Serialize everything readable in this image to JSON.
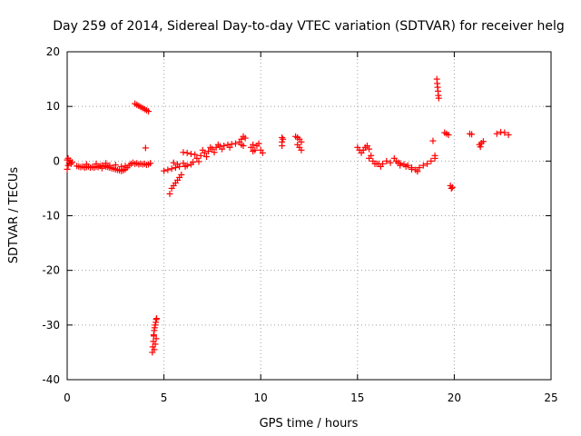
{
  "chart_data": {
    "type": "scatter",
    "title": "Day 259 of 2014, Sidereal Day-to-day VTEC variation (SDTVAR) for receiver helg",
    "xlabel": "GPS time / hours",
    "ylabel": "SDTVAR / TECUs",
    "xlim": [
      0,
      25
    ],
    "ylim": [
      -40,
      20
    ],
    "xticks": [
      0,
      5,
      10,
      15,
      20,
      25
    ],
    "yticks": [
      -40,
      -30,
      -20,
      -10,
      0,
      10,
      20
    ],
    "grid": true,
    "marker": "+",
    "color": "#ff0000",
    "series": [
      {
        "name": "SDTVAR",
        "points": [
          [
            0.0,
            0.2
          ],
          [
            0.0,
            -1.5
          ],
          [
            0.05,
            0.5
          ],
          [
            0.05,
            -0.8
          ],
          [
            0.1,
            -0.3
          ],
          [
            0.15,
            0.1
          ],
          [
            0.2,
            -0.5
          ],
          [
            0.25,
            -0.2
          ],
          [
            0.5,
            -0.9
          ],
          [
            0.6,
            -1.0
          ],
          [
            0.7,
            -1.1
          ],
          [
            0.8,
            -1.0
          ],
          [
            0.9,
            -1.2
          ],
          [
            1.0,
            -1.1
          ],
          [
            1.1,
            -1.0
          ],
          [
            1.2,
            -1.2
          ],
          [
            1.3,
            -1.1
          ],
          [
            1.4,
            -1.2
          ],
          [
            1.5,
            -1.0
          ],
          [
            1.6,
            -1.1
          ],
          [
            1.7,
            -0.9
          ],
          [
            1.8,
            -0.8
          ],
          [
            1.9,
            -0.9
          ],
          [
            2.0,
            -1.0
          ],
          [
            2.1,
            -1.1
          ],
          [
            2.2,
            -1.2
          ],
          [
            2.3,
            -1.3
          ],
          [
            2.4,
            -1.4
          ],
          [
            2.5,
            -1.5
          ],
          [
            2.6,
            -1.6
          ],
          [
            2.7,
            -1.7
          ],
          [
            2.8,
            -1.8
          ],
          [
            2.9,
            -1.7
          ],
          [
            3.0,
            -1.5
          ],
          [
            3.1,
            -1.2
          ],
          [
            3.2,
            -0.8
          ],
          [
            3.3,
            -0.5
          ],
          [
            3.4,
            -0.3
          ],
          [
            3.5,
            -0.5
          ],
          [
            3.6,
            -0.4
          ],
          [
            3.7,
            -0.6
          ],
          [
            3.8,
            -0.5
          ],
          [
            3.9,
            -0.6
          ],
          [
            4.0,
            -0.5
          ],
          [
            4.1,
            -0.7
          ],
          [
            4.2,
            -0.6
          ],
          [
            4.3,
            -0.4
          ],
          [
            1.0,
            -0.6
          ],
          [
            1.5,
            -0.5
          ],
          [
            2.0,
            -0.4
          ],
          [
            2.5,
            -0.7
          ],
          [
            3.0,
            -0.9
          ],
          [
            2.2,
            -0.8
          ],
          [
            2.8,
            -1.0
          ],
          [
            1.8,
            -1.3
          ],
          [
            3.5,
            10.5
          ],
          [
            3.6,
            10.3
          ],
          [
            3.7,
            10.1
          ],
          [
            3.8,
            9.9
          ],
          [
            3.9,
            9.7
          ],
          [
            4.0,
            9.5
          ],
          [
            4.1,
            9.3
          ],
          [
            4.2,
            9.1
          ],
          [
            4.05,
            2.4
          ],
          [
            4.4,
            -35.0
          ],
          [
            4.42,
            -34.0
          ],
          [
            4.45,
            -33.0
          ],
          [
            4.48,
            -32.0
          ],
          [
            4.5,
            -31.0
          ],
          [
            4.52,
            -30.5
          ],
          [
            4.55,
            -30.0
          ],
          [
            4.58,
            -29.5
          ],
          [
            4.6,
            -29.0
          ],
          [
            4.62,
            -28.8
          ],
          [
            4.5,
            -34.5
          ],
          [
            4.55,
            -33.5
          ],
          [
            4.6,
            -32.5
          ],
          [
            4.47,
            -31.8
          ],
          [
            5.0,
            -1.8
          ],
          [
            5.2,
            -1.6
          ],
          [
            5.4,
            -1.4
          ],
          [
            5.6,
            -1.2
          ],
          [
            5.8,
            -1.0
          ],
          [
            5.3,
            -6.0
          ],
          [
            5.4,
            -5.0
          ],
          [
            5.5,
            -4.5
          ],
          [
            5.6,
            -4.0
          ],
          [
            5.7,
            -3.5
          ],
          [
            5.8,
            -3.0
          ],
          [
            5.9,
            -2.5
          ],
          [
            5.5,
            -0.3
          ],
          [
            5.7,
            -0.6
          ],
          [
            6.0,
            -0.4
          ],
          [
            6.2,
            -0.8
          ],
          [
            6.4,
            -0.6
          ],
          [
            6.1,
            -1.0
          ],
          [
            6.0,
            1.6
          ],
          [
            6.2,
            1.5
          ],
          [
            6.4,
            1.3
          ],
          [
            6.6,
            1.2
          ],
          [
            6.5,
            -0.2
          ],
          [
            6.7,
            0.5
          ],
          [
            6.9,
            1.0
          ],
          [
            7.1,
            1.5
          ],
          [
            7.3,
            1.8
          ],
          [
            7.5,
            2.2
          ],
          [
            7.7,
            2.5
          ],
          [
            7.9,
            2.7
          ],
          [
            8.1,
            2.8
          ],
          [
            8.3,
            3.0
          ],
          [
            8.5,
            3.1
          ],
          [
            8.7,
            3.2
          ],
          [
            6.8,
            -0.1
          ],
          [
            7.2,
            0.8
          ],
          [
            7.6,
            1.6
          ],
          [
            8.0,
            2.2
          ],
          [
            8.4,
            2.5
          ],
          [
            7.0,
            2.0
          ],
          [
            7.4,
            2.5
          ],
          [
            7.8,
            3.0
          ],
          [
            8.9,
            3.5
          ],
          [
            9.0,
            4.0
          ],
          [
            9.1,
            4.5
          ],
          [
            9.2,
            4.2
          ],
          [
            9.0,
            3.0
          ],
          [
            9.1,
            2.8
          ],
          [
            9.5,
            2.5
          ],
          [
            9.6,
            3.0
          ],
          [
            9.7,
            2.0
          ],
          [
            9.8,
            2.8
          ],
          [
            9.9,
            3.2
          ],
          [
            10.0,
            2.0
          ],
          [
            10.1,
            1.5
          ],
          [
            9.6,
            1.8
          ],
          [
            11.1,
            4.3
          ],
          [
            11.1,
            3.5
          ],
          [
            11.1,
            2.8
          ],
          [
            11.15,
            4.0
          ],
          [
            11.8,
            4.5
          ],
          [
            11.9,
            4.3
          ],
          [
            12.0,
            4.0
          ],
          [
            12.1,
            3.5
          ],
          [
            11.9,
            3.0
          ],
          [
            12.0,
            2.5
          ],
          [
            12.1,
            2.0
          ],
          [
            15.0,
            2.5
          ],
          [
            15.1,
            2.0
          ],
          [
            15.2,
            1.5
          ],
          [
            15.3,
            2.0
          ],
          [
            15.4,
            2.5
          ],
          [
            15.5,
            2.8
          ],
          [
            15.6,
            2.2
          ],
          [
            15.7,
            1.0
          ],
          [
            15.6,
            0.5
          ],
          [
            15.8,
            0.0
          ],
          [
            15.9,
            -0.5
          ],
          [
            16.0,
            -0.5
          ],
          [
            16.1,
            -0.5
          ],
          [
            16.2,
            -1.0
          ],
          [
            16.3,
            -0.5
          ],
          [
            16.5,
            0.0
          ],
          [
            16.7,
            -0.3
          ],
          [
            16.9,
            0.5
          ],
          [
            17.0,
            0.0
          ],
          [
            17.1,
            -0.3
          ],
          [
            17.2,
            -0.4
          ],
          [
            17.4,
            -0.6
          ],
          [
            17.6,
            -0.8
          ],
          [
            17.8,
            -1.2
          ],
          [
            18.0,
            -1.6
          ],
          [
            18.2,
            -1.2
          ],
          [
            18.4,
            -0.8
          ],
          [
            18.6,
            -0.5
          ],
          [
            18.8,
            0.0
          ],
          [
            19.0,
            0.5
          ],
          [
            17.2,
            -0.8
          ],
          [
            17.5,
            -1.0
          ],
          [
            17.8,
            -1.5
          ],
          [
            18.1,
            -1.9
          ],
          [
            18.9,
            3.7
          ],
          [
            19.0,
            1.0
          ],
          [
            19.1,
            15.0
          ],
          [
            19.12,
            14.2
          ],
          [
            19.14,
            13.5
          ],
          [
            19.16,
            12.8
          ],
          [
            19.18,
            12.0
          ],
          [
            19.2,
            11.5
          ],
          [
            19.5,
            5.2
          ],
          [
            19.6,
            5.0
          ],
          [
            19.7,
            4.8
          ],
          [
            19.8,
            -4.5
          ],
          [
            19.85,
            -5.0
          ],
          [
            19.9,
            -4.8
          ],
          [
            20.8,
            5.0
          ],
          [
            20.9,
            4.9
          ],
          [
            21.3,
            3.0
          ],
          [
            21.4,
            3.3
          ],
          [
            21.5,
            3.6
          ],
          [
            21.35,
            2.6
          ],
          [
            22.2,
            5.0
          ],
          [
            22.4,
            5.3
          ],
          [
            22.6,
            5.2
          ],
          [
            22.8,
            4.8
          ]
        ]
      }
    ]
  }
}
